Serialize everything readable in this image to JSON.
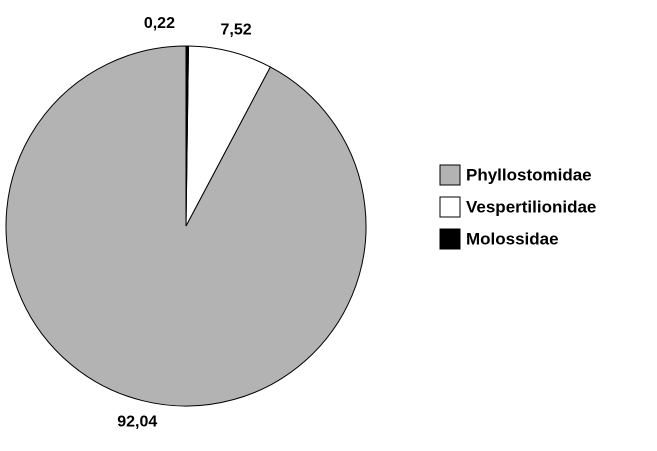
{
  "chart_data": {
    "type": "pie",
    "categories": [
      "Phyllostomidae",
      "Vespertilionidae",
      "Molossidae"
    ],
    "values": [
      92.04,
      7.52,
      0.22
    ],
    "value_labels": [
      "92,04",
      "7,52",
      "0,22"
    ],
    "colors": [
      "#b3b3b3",
      "#ffffff",
      "#000000"
    ]
  }
}
